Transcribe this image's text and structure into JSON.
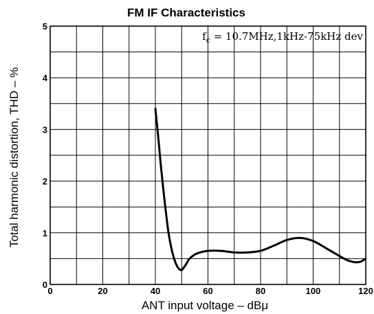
{
  "chart_data": {
    "type": "line",
    "title": "FM IF Characteristics",
    "xlabel": "ANT input voltage – dBμ",
    "ylabel": "Total harmonic distortion, THD – %",
    "annotation": {
      "prefix": "f",
      "subscript": "c",
      "text": " = 10.7MHz,1kHz-75kHz dev"
    },
    "xlim": [
      0,
      120
    ],
    "ylim": [
      0,
      5
    ],
    "x_ticks": [
      0,
      20,
      40,
      60,
      80,
      100,
      120
    ],
    "y_ticks": [
      0,
      1,
      2,
      3,
      4,
      5
    ],
    "x_grid_step": 10,
    "y_grid_step": 0.5,
    "grid": true,
    "series": [
      {
        "x": [
          40,
          41,
          42,
          43,
          44,
          45,
          46,
          47,
          48,
          49,
          50,
          51,
          52,
          53,
          55,
          57,
          60,
          65,
          70,
          75,
          80,
          85,
          90,
          95,
          100,
          105,
          110,
          113,
          116,
          118,
          120
        ],
        "y": [
          3.4,
          2.9,
          2.35,
          1.85,
          1.4,
          1.0,
          0.72,
          0.52,
          0.38,
          0.3,
          0.28,
          0.34,
          0.42,
          0.5,
          0.58,
          0.62,
          0.65,
          0.65,
          0.62,
          0.62,
          0.65,
          0.75,
          0.86,
          0.9,
          0.84,
          0.7,
          0.55,
          0.47,
          0.43,
          0.44,
          0.5
        ]
      }
    ]
  }
}
